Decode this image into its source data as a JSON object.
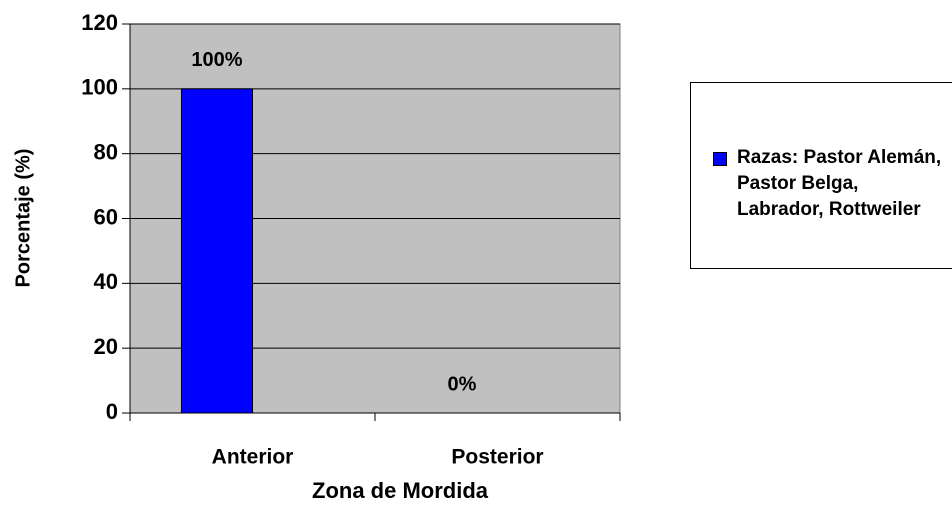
{
  "chart_data": {
    "type": "bar",
    "xlabel": "Zona de Mordida",
    "ylabel": "Porcentaje (%)",
    "categories": [
      "Anterior",
      "Posterior"
    ],
    "series": [
      {
        "name": "Razas: Pastor Alemán, Pastor Belga, Labrador, Rottweiler",
        "color": "#0000ff",
        "values": [
          100,
          0
        ],
        "value_labels": [
          "100%",
          "0%"
        ]
      }
    ],
    "ylim": [
      0,
      120
    ],
    "yticks": [
      0,
      20,
      40,
      60,
      80,
      100,
      120
    ],
    "grid": true,
    "legend": "right"
  }
}
